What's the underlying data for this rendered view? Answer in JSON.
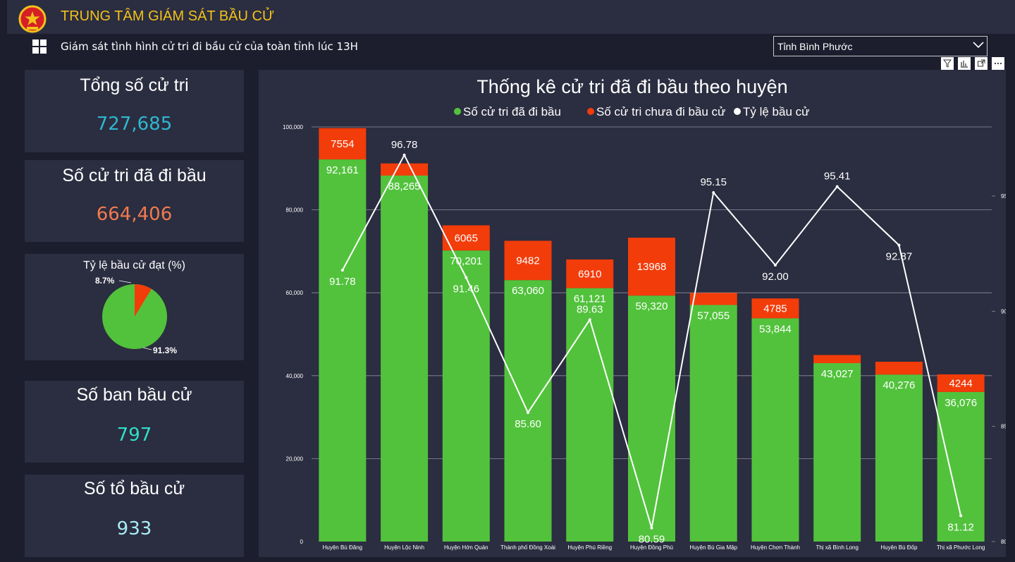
{
  "header": {
    "title": "TRUNG TÂM GIÁM SÁT BẦU CỬ"
  },
  "subheader": {
    "text": "Giám sát tình hình cử tri đi bầu cử của toàn tỉnh lúc 13H"
  },
  "filter": {
    "selected": "Tỉnh Bình Phước"
  },
  "cards": {
    "total_voters": {
      "title": "Tổng số cử tri",
      "value": "727,685",
      "color": "#2fb7d0"
    },
    "voted": {
      "title": "Số cử tri đã đi bầu",
      "value": "664,406",
      "color": "#f07b4f"
    },
    "pie": {
      "title": "Tỷ lệ bầu cử đạt (%)",
      "voted_pct_label": "91.3%",
      "not_voted_pct_label": "8.7%",
      "voted_fraction": 0.913
    },
    "polling_boards": {
      "title": "Số ban bầu cử",
      "value": "797",
      "color": "#2ee0c8"
    },
    "polling_teams": {
      "title": "Số tổ bầu cử",
      "value": "933",
      "color": "#a8ecf5"
    }
  },
  "colors": {
    "green": "#52c23c",
    "red": "#f23c0a",
    "line": "#ffffff"
  },
  "chart_data": {
    "type": "bar",
    "stacked": true,
    "title": "Thống kê cử tri đã đi bầu theo huyện",
    "legend_position": "top",
    "categories": [
      "Huyện Bù Đăng",
      "Huyện Lộc Ninh",
      "Huyện Hớn Quản",
      "Thành phố Đồng Xoài",
      "Huyện Phú Riềng",
      "Huyện Đồng Phú",
      "Huyện Bù Gia Mập",
      "Huyện Chơn Thành",
      "Thị xã Bình Long",
      "Huyện Bù Đốp",
      "Thị xã Phước Long"
    ],
    "series": [
      {
        "name": "Số cử tri đã đi bầu",
        "type": "bar",
        "axis": "left",
        "color": "#52c23c",
        "values": [
          92161,
          88265,
          70201,
          63060,
          61121,
          59320,
          57055,
          53844,
          43027,
          40276,
          36076
        ],
        "labels": [
          "92,161",
          "88,265",
          "70,201",
          "63,060",
          "61,121",
          "59,320",
          "57,055",
          "53,844",
          "43,027",
          "40,276",
          "36,076"
        ]
      },
      {
        "name": "Số cử tri chưa đi bầu cử",
        "type": "bar",
        "axis": "left",
        "color": "#f23c0a",
        "values": [
          7554,
          2935,
          6065,
          9482,
          6910,
          13968,
          2907,
          4785,
          1961,
          3093,
          4244
        ],
        "labels": [
          "7554",
          "",
          "6065",
          "9482",
          "6910",
          "13968",
          "",
          "4785",
          "",
          "",
          "4244"
        ]
      },
      {
        "name": "Tỷ lệ bầu cử",
        "type": "line",
        "axis": "right",
        "color": "#ffffff",
        "values": [
          91.78,
          96.78,
          91.46,
          85.6,
          89.63,
          80.59,
          95.15,
          92.0,
          95.41,
          92.87,
          81.12
        ],
        "labels": [
          "91.78",
          "96.78",
          "91.46",
          "85.60",
          "89.63",
          "80.59",
          "95.15",
          "92.00",
          "95.41",
          "92.87",
          "81.12"
        ]
      }
    ],
    "y_left": {
      "min": 0,
      "max": 100000,
      "ticks": [
        "0",
        "20,000",
        "40,000",
        "60,000",
        "80,000",
        "100,000"
      ]
    },
    "y_right": {
      "min": 80,
      "max": 98,
      "ticks": [
        "80",
        "85",
        "90",
        "95"
      ]
    },
    "grid": true
  }
}
